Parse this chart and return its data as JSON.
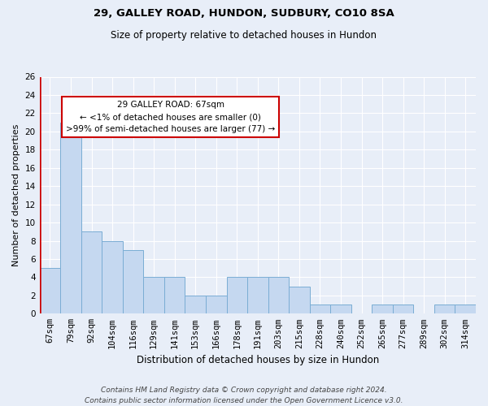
{
  "title1": "29, GALLEY ROAD, HUNDON, SUDBURY, CO10 8SA",
  "title2": "Size of property relative to detached houses in Hundon",
  "xlabel": "Distribution of detached houses by size in Hundon",
  "ylabel": "Number of detached properties",
  "categories": [
    "67sqm",
    "79sqm",
    "92sqm",
    "104sqm",
    "116sqm",
    "129sqm",
    "141sqm",
    "153sqm",
    "166sqm",
    "178sqm",
    "191sqm",
    "203sqm",
    "215sqm",
    "228sqm",
    "240sqm",
    "252sqm",
    "265sqm",
    "277sqm",
    "289sqm",
    "302sqm",
    "314sqm"
  ],
  "values": [
    5,
    21,
    9,
    8,
    7,
    4,
    4,
    2,
    2,
    4,
    4,
    4,
    3,
    1,
    1,
    0,
    1,
    1,
    0,
    1,
    1
  ],
  "bar_color": "#c5d8f0",
  "bar_edge_color": "#7aadd4",
  "highlight_color": "#cc0000",
  "ylim": [
    0,
    26
  ],
  "yticks": [
    0,
    2,
    4,
    6,
    8,
    10,
    12,
    14,
    16,
    18,
    20,
    22,
    24,
    26
  ],
  "annotation_text": "29 GALLEY ROAD: 67sqm\n← <1% of detached houses are smaller (0)\n>99% of semi-detached houses are larger (77) →",
  "footer": "Contains HM Land Registry data © Crown copyright and database right 2024.\nContains public sector information licensed under the Open Government Licence v3.0.",
  "bg_color": "#e8eef8",
  "grid_color": "#ffffff",
  "annotation_box_color": "#ffffff",
  "annotation_box_edge": "#cc0000",
  "title1_fontsize": 9.5,
  "title2_fontsize": 8.5,
  "xlabel_fontsize": 8.5,
  "ylabel_fontsize": 8,
  "tick_fontsize": 7.5,
  "annot_fontsize": 7.5,
  "footer_fontsize": 6.5
}
